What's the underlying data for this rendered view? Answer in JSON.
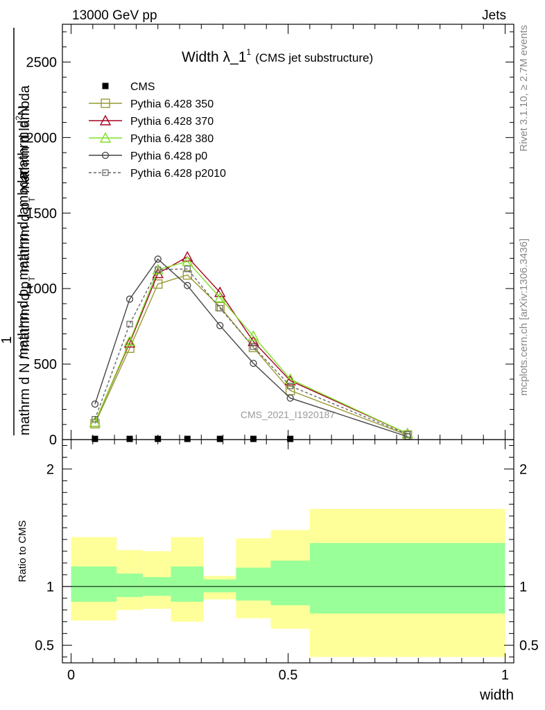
{
  "header": {
    "energy_label": "13000 GeV pp",
    "process_label": "Jets",
    "side_rivet": "Rivet 3.1.10, ≥ 2.7M events",
    "side_mcplots": "mcplots.cern.ch [arXiv:1306.3436]",
    "watermark": "CMS_2021_I1920187"
  },
  "chart_data": [
    {
      "type": "line",
      "title": "Width λ_1",
      "title_sup": "1",
      "subtitle": "(CMS jet substructure)",
      "ylabel_top": "mathrm d",
      "ylabel_top_sup": "2",
      "ylabel_top_end": "N",
      "ylabel_mid": "mathrm d p",
      "ylabel_mid_sub": "T",
      "ylabel_mid_end": " mathrm d lambda",
      "ylabel_bottom": "mathrm d N / mathrm d p",
      "ylabel_bottom_sub": "T",
      "ylabel_bottom_end": " mathrm d p",
      "ylabel_bottom_sub2": "T",
      "ylabel_bottom_end2": " mathrm d lambda",
      "ylabel_one": "1",
      "xlim": [
        -0.02,
        1.02
      ],
      "ylim": [
        0,
        2750
      ],
      "yticks": [
        0,
        500,
        1000,
        1500,
        2000,
        2500
      ],
      "ytick_labels": [
        "0",
        "500",
        "1000",
        "1500",
        "2000",
        "2500"
      ],
      "legend_position": "top-left",
      "series": [
        {
          "name": "CMS",
          "color": "#000000",
          "marker": "filled-square",
          "dash": "",
          "x": [
            0.055,
            0.135,
            0.2,
            0.268,
            0.343,
            0.42,
            0.505
          ],
          "y": [
            0,
            0,
            0,
            0,
            0,
            0,
            0
          ]
        },
        {
          "name": "Pythia 6.428 350",
          "color": "#999933",
          "marker": "open-square",
          "dash": "",
          "x": [
            0.055,
            0.135,
            0.2,
            0.268,
            0.343,
            0.42,
            0.505,
            0.775
          ],
          "y": [
            105,
            605,
            1030,
            1090,
            880,
            610,
            325,
            30
          ]
        },
        {
          "name": "Pythia 6.428 370",
          "color": "#a50021",
          "marker": "open-triangle",
          "dash": "",
          "x": [
            0.055,
            0.135,
            0.2,
            0.268,
            0.343,
            0.42,
            0.505,
            0.775
          ],
          "y": [
            115,
            640,
            1100,
            1210,
            975,
            650,
            390,
            40
          ]
        },
        {
          "name": "Pythia 6.428 380",
          "color": "#80e02a",
          "marker": "open-triangle",
          "dash": "",
          "x": [
            0.055,
            0.135,
            0.2,
            0.268,
            0.343,
            0.42,
            0.505,
            0.775
          ],
          "y": [
            115,
            650,
            1125,
            1180,
            940,
            685,
            400,
            40
          ]
        },
        {
          "name": "Pythia 6.428 p0",
          "color": "#444444",
          "marker": "open-circle",
          "dash": "",
          "x": [
            0.055,
            0.135,
            0.2,
            0.268,
            0.343,
            0.42,
            0.505,
            0.775
          ],
          "y": [
            235,
            930,
            1195,
            1020,
            755,
            505,
            275,
            20
          ]
        },
        {
          "name": "Pythia 6.428 p2010",
          "color": "#666666",
          "marker": "open-square-small",
          "dash": "4,3",
          "x": [
            0.055,
            0.135,
            0.2,
            0.268,
            0.343,
            0.42,
            0.505,
            0.775
          ],
          "y": [
            135,
            765,
            1125,
            1130,
            870,
            615,
            355,
            35
          ]
        }
      ]
    },
    {
      "type": "area",
      "ylabel": "Ratio to CMS",
      "xlabel": "width",
      "xlim": [
        -0.02,
        1.02
      ],
      "ylim": [
        0.35,
        2.25
      ],
      "xticks": [
        0,
        0.5,
        1
      ],
      "xtick_labels": [
        "0",
        "0.5",
        "1"
      ],
      "yticks": [
        0.5,
        1,
        2
      ],
      "ytick_labels": [
        "0.5",
        "1",
        "2"
      ],
      "reference_line": 1,
      "bands": [
        {
          "name": "outer",
          "color": "#ffff99",
          "bins": [
            {
              "x0": 0.0,
              "x1": 0.105,
              "lo": 0.71,
              "hi": 1.42
            },
            {
              "x0": 0.105,
              "x1": 0.165,
              "lo": 0.8,
              "hi": 1.31
            },
            {
              "x0": 0.165,
              "x1": 0.23,
              "lo": 0.81,
              "hi": 1.3
            },
            {
              "x0": 0.23,
              "x1": 0.305,
              "lo": 0.7,
              "hi": 1.42
            },
            {
              "x0": 0.305,
              "x1": 0.38,
              "lo": 0.89,
              "hi": 1.09
            },
            {
              "x0": 0.38,
              "x1": 0.46,
              "lo": 0.73,
              "hi": 1.41
            },
            {
              "x0": 0.46,
              "x1": 0.55,
              "lo": 0.64,
              "hi": 1.48
            },
            {
              "x0": 0.55,
              "x1": 1.0,
              "lo": 0.4,
              "hi": 1.66
            }
          ]
        },
        {
          "name": "inner",
          "color": "#99ff99",
          "bins": [
            {
              "x0": 0.0,
              "x1": 0.105,
              "lo": 0.87,
              "hi": 1.17
            },
            {
              "x0": 0.105,
              "x1": 0.165,
              "lo": 0.91,
              "hi": 1.11
            },
            {
              "x0": 0.165,
              "x1": 0.23,
              "lo": 0.92,
              "hi": 1.08
            },
            {
              "x0": 0.23,
              "x1": 0.305,
              "lo": 0.87,
              "hi": 1.17
            },
            {
              "x0": 0.305,
              "x1": 0.38,
              "lo": 0.95,
              "hi": 1.06
            },
            {
              "x0": 0.38,
              "x1": 0.46,
              "lo": 0.88,
              "hi": 1.16
            },
            {
              "x0": 0.46,
              "x1": 0.55,
              "lo": 0.84,
              "hi": 1.22
            },
            {
              "x0": 0.55,
              "x1": 1.0,
              "lo": 0.77,
              "hi": 1.37
            }
          ]
        }
      ]
    }
  ]
}
